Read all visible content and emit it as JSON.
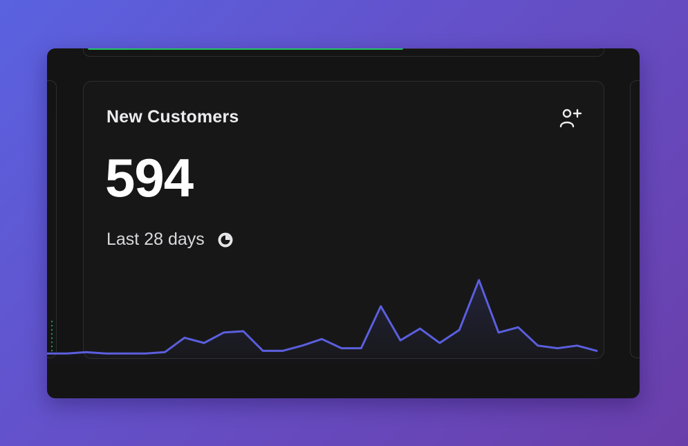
{
  "card": {
    "title": "New Customers",
    "value": "594",
    "period": "Last 28 days",
    "icons": {
      "header": "user-plus-icon",
      "period": "clock-icon"
    }
  },
  "colors": {
    "line": "#5b5fde",
    "accent_progress": "#22c55e",
    "card_bg": "#171718"
  },
  "sparkline": {
    "values": [
      2,
      2,
      3,
      2,
      2,
      2,
      3,
      14,
      10,
      18,
      19,
      4,
      4,
      8,
      13,
      6,
      6,
      38,
      12,
      21,
      10,
      20,
      58,
      18,
      22,
      8,
      6,
      8,
      4
    ]
  }
}
